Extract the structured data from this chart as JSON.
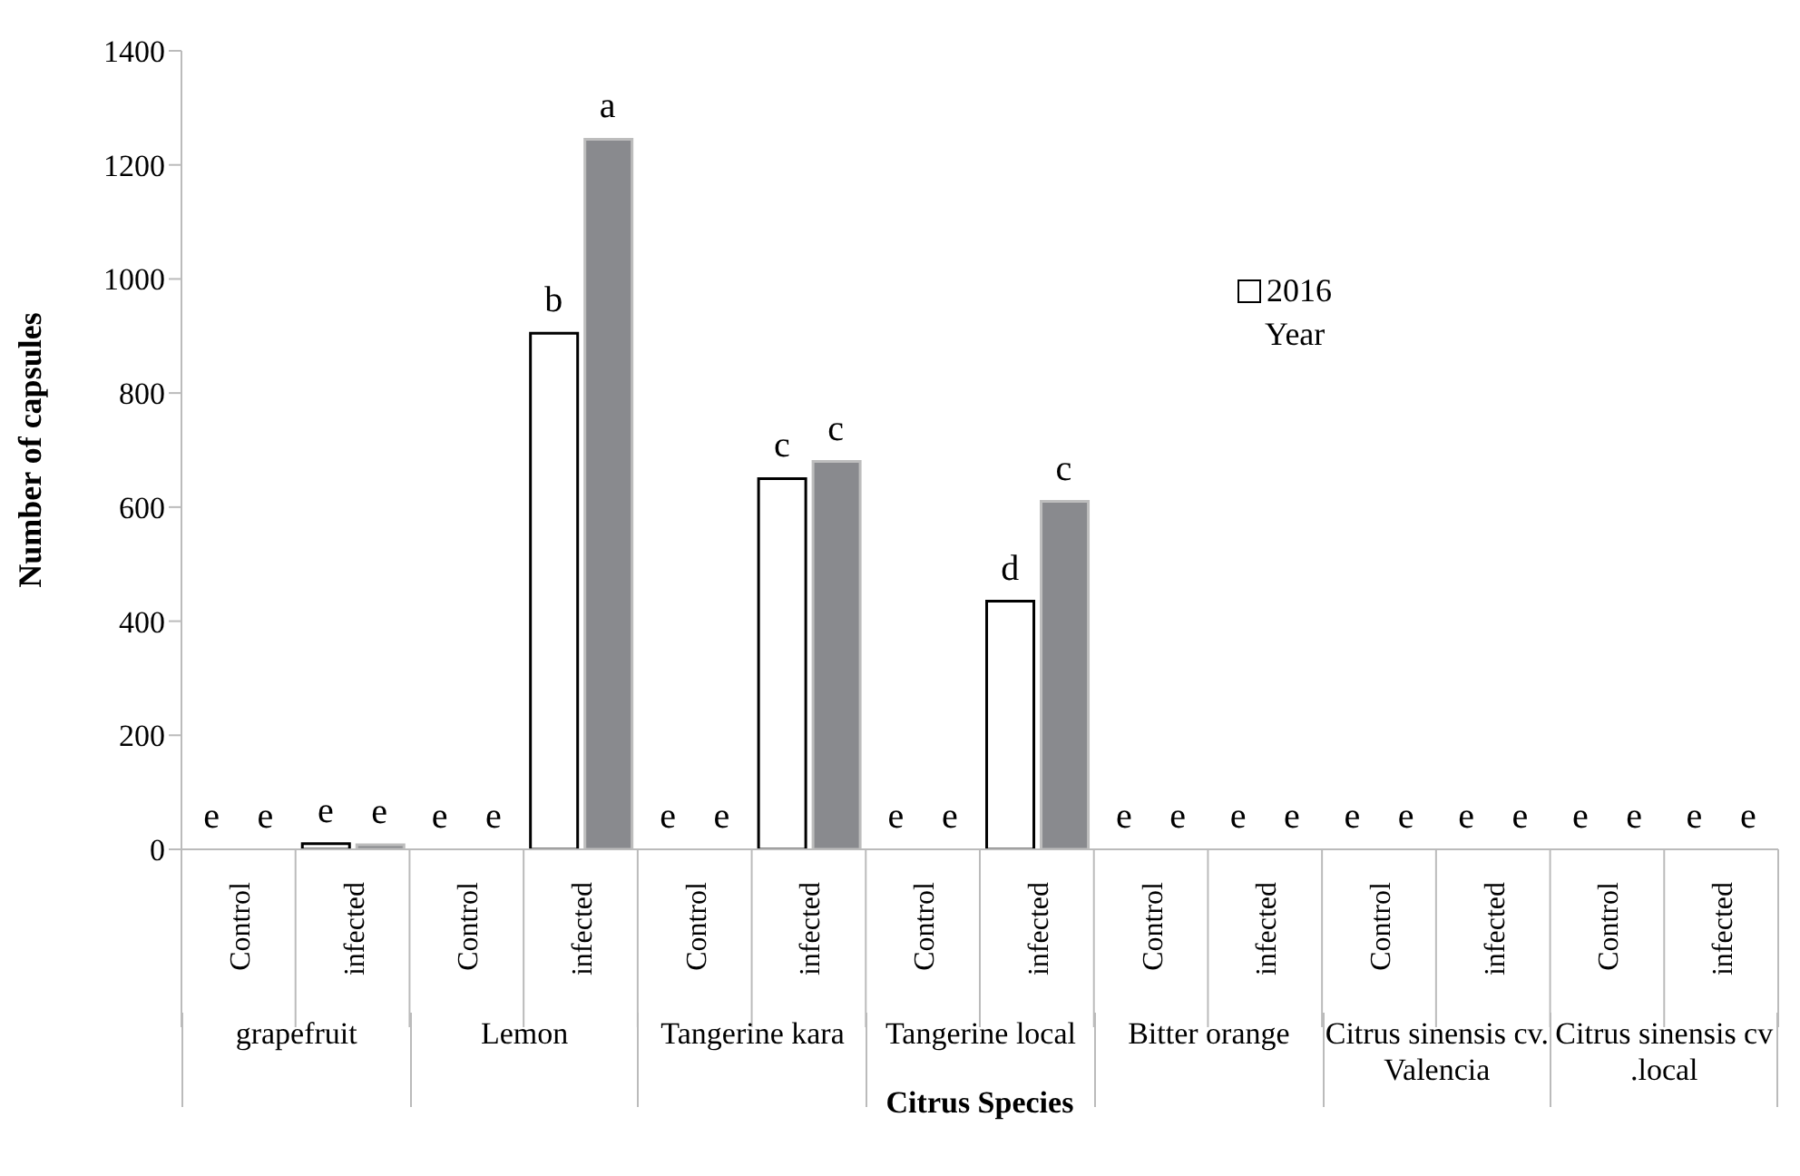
{
  "chart_data": {
    "type": "bar",
    "xlabel": "Citrus Species",
    "ylabel": "Number of capsules",
    "legend_title": "Year",
    "legend": "top right",
    "grid": false,
    "categories": [
      "Control",
      "infected",
      "Control",
      "infected",
      "Control",
      "infected",
      "Control",
      "infected",
      "Control",
      "infected",
      "Control",
      "infected",
      "Control",
      "infected"
    ],
    "annotations": [
      "grapefruit",
      "Lemon",
      "Tangerine kara",
      "Tangerine local",
      "Bitter orange",
      "Citrus sinensis cv. Valencia",
      "Citrus sinensis cv .local"
    ],
    "series": [
      {
        "name": "2016",
        "color": "#ffffff",
        "values": [
          0,
          10,
          0,
          905,
          0,
          650,
          0,
          435,
          0,
          0,
          0,
          0,
          0,
          0
        ],
        "value_labels": [
          "e",
          "e",
          "e",
          "b",
          "e",
          "c",
          "e",
          "d",
          "e",
          "e",
          "e",
          "e",
          "e",
          "e"
        ]
      },
      {
        "color": "#898a8e",
        "values": [
          0,
          8,
          0,
          1245,
          0,
          680,
          0,
          610,
          0,
          0,
          0,
          0,
          0,
          0
        ],
        "value_labels": [
          "e",
          "e",
          "e",
          "a",
          "e",
          "c",
          "e",
          "c",
          "e",
          "e",
          "e",
          "e",
          "e",
          "e"
        ]
      }
    ],
    "ylim": [
      0,
      1400
    ],
    "yticks": [
      0,
      200,
      400,
      600,
      800,
      1000,
      1200,
      1400
    ]
  }
}
